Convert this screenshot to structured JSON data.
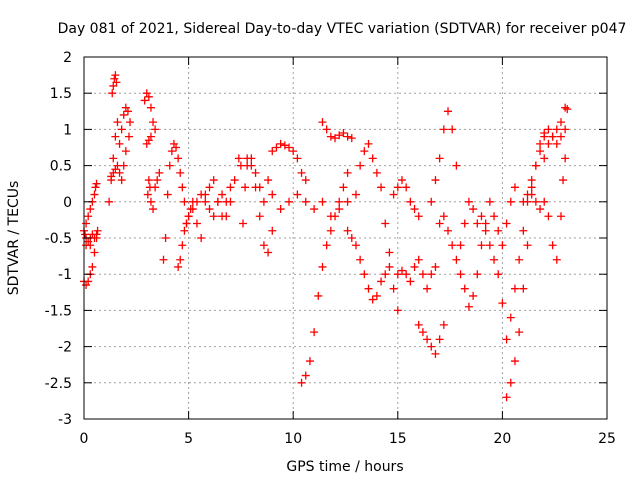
{
  "chart_data": {
    "type": "scatter",
    "title": "Day 081 of 2021, Sidereal Day-to-day VTEC variation (SDTVAR) for receiver p047",
    "xlabel": "GPS time / hours",
    "ylabel": "SDTVAR / TECUs",
    "xlim": [
      0,
      25
    ],
    "ylim": [
      -3,
      2
    ],
    "xticks": [
      0,
      5,
      10,
      15,
      20,
      25
    ],
    "xtick_labels": [
      "0",
      "5",
      "10",
      "15",
      "20",
      "25"
    ],
    "yticks": [
      -3,
      -2.5,
      -2,
      -1.5,
      -1,
      -0.5,
      0,
      0.5,
      1,
      1.5,
      2
    ],
    "ytick_labels": [
      "-3",
      "-2.5",
      "-2",
      "-1.5",
      "-1",
      "-0.5",
      "0",
      "0.5",
      "1",
      "1.5",
      "2"
    ],
    "grid": true,
    "marker": "+",
    "marker_color": "#ff0000",
    "series": [
      {
        "name": "SDTVAR",
        "x": [
          0.0,
          0.1,
          0.2,
          0.3,
          0.4,
          0.5,
          0.6,
          0.65,
          0.1,
          0.2,
          0.3,
          0.4,
          0.5,
          0.55,
          0.6,
          0.1,
          0.3,
          0.5,
          0.6,
          0.0,
          0.05,
          0.1,
          0.2,
          0.3,
          0.4
        ],
        "y": [
          -1.1,
          -1.15,
          -1.1,
          -1.0,
          -0.9,
          -0.7,
          -0.5,
          -0.4,
          -0.3,
          -0.2,
          -0.1,
          0.0,
          0.1,
          0.2,
          0.25,
          -0.5,
          -0.6,
          -0.5,
          -0.45,
          -0.4,
          -0.45,
          -0.6,
          -0.55,
          -0.5,
          -0.45
        ]
      },
      {
        "name": "SDTVAR",
        "x": [
          1.2,
          1.3,
          1.4,
          1.5,
          1.6,
          1.7,
          1.8,
          1.9,
          2.0,
          2.1,
          2.2,
          2.15,
          2.0,
          1.9,
          1.8,
          1.7,
          1.6,
          1.5,
          1.4,
          1.3,
          1.35,
          1.4,
          1.45,
          1.5,
          1.55
        ],
        "y": [
          0.0,
          0.3,
          0.6,
          0.9,
          1.1,
          0.8,
          1.0,
          1.2,
          1.3,
          1.25,
          1.1,
          0.9,
          0.7,
          0.5,
          0.3,
          0.4,
          0.5,
          0.45,
          0.4,
          0.35,
          1.5,
          1.6,
          1.7,
          1.75,
          1.65
        ]
      },
      {
        "name": "SDTVAR",
        "x": [
          2.9,
          3.0,
          3.1,
          3.2,
          3.3,
          3.4,
          3.2,
          3.1,
          3.0,
          3.05,
          3.1,
          3.15,
          3.2,
          3.3,
          3.4,
          3.5,
          3.6
        ],
        "y": [
          1.4,
          1.5,
          1.45,
          1.3,
          1.1,
          1.0,
          0.9,
          0.85,
          0.8,
          0.1,
          0.3,
          0.2,
          0.0,
          -0.1,
          0.2,
          0.3,
          0.4
        ]
      },
      {
        "name": "SDTVAR",
        "x": [
          3.8,
          3.9,
          4.0,
          4.1,
          4.2,
          4.3,
          4.4,
          4.5,
          4.6,
          4.7,
          4.8,
          4.9,
          5.0,
          5.1,
          5.2,
          5.4,
          5.6,
          5.8,
          6.0,
          6.2,
          6.4,
          6.6,
          6.8,
          7.0,
          7.2,
          7.4,
          7.5
        ],
        "y": [
          -0.8,
          -0.5,
          0.1,
          0.5,
          0.7,
          0.8,
          0.75,
          0.6,
          0.4,
          0.2,
          0.0,
          -0.3,
          -0.2,
          -0.1,
          0.0,
          -0.3,
          -0.5,
          0.1,
          0.2,
          0.3,
          0.0,
          -0.2,
          0.0,
          0.2,
          0.3,
          0.6,
          0.5
        ]
      },
      {
        "name": "SDTVAR",
        "x": [
          4.5,
          4.6,
          4.7,
          4.8,
          4.9,
          5.0,
          5.2,
          5.4,
          5.6,
          5.8,
          6.0,
          6.2,
          6.4,
          6.6,
          6.8,
          7.0
        ],
        "y": [
          -0.9,
          -0.8,
          -0.6,
          -0.4,
          -0.3,
          -0.2,
          -0.1,
          0.0,
          0.1,
          0.0,
          -0.1,
          -0.2,
          0.0,
          0.1,
          -0.2,
          0.0
        ]
      },
      {
        "name": "SDTVAR",
        "x": [
          7.8,
          8.0,
          8.2,
          8.4,
          8.6,
          8.8,
          9.0,
          8.6,
          8.4,
          8.2,
          8.0,
          7.8,
          7.7,
          7.6
        ],
        "y": [
          0.6,
          0.5,
          0.2,
          -0.2,
          -0.6,
          -0.7,
          -0.4,
          0.0,
          0.2,
          0.4,
          0.6,
          0.5,
          0.2,
          -0.3
        ]
      },
      {
        "name": "SDTVAR",
        "x": [
          9.0,
          9.2,
          9.4,
          9.6,
          9.8,
          10.0,
          10.2,
          10.4,
          10.6
        ],
        "y": [
          0.7,
          0.75,
          0.8,
          0.78,
          0.75,
          0.7,
          0.6,
          0.4,
          0.3
        ]
      },
      {
        "name": "SDTVAR",
        "x": [
          8.8,
          9.0,
          9.4,
          9.8,
          10.2,
          10.6,
          11.0,
          11.4,
          11.8,
          12.2,
          12.6,
          13.0
        ],
        "y": [
          0.3,
          0.1,
          -0.1,
          0.0,
          0.1,
          0.0,
          -0.1,
          0.0,
          -0.2,
          -0.1,
          0.0,
          0.1
        ]
      },
      {
        "name": "SDTVAR",
        "x": [
          10.4,
          10.6,
          10.8,
          11.0,
          11.2,
          11.4,
          11.6,
          11.8,
          12.0,
          12.2,
          12.4,
          12.6
        ],
        "y": [
          -2.5,
          -2.4,
          -2.2,
          -1.8,
          -1.3,
          -0.9,
          -0.6,
          -0.4,
          -0.2,
          0.0,
          0.2,
          0.4
        ]
      },
      {
        "name": "SDTVAR",
        "x": [
          11.4,
          11.6,
          11.8,
          12.0,
          12.2,
          12.4,
          12.6,
          12.8
        ],
        "y": [
          1.1,
          1.0,
          0.9,
          0.88,
          0.92,
          0.95,
          0.9,
          0.88
        ]
      },
      {
        "name": "SDTVAR",
        "x": [
          12.6,
          12.8,
          13.0,
          13.2,
          13.4,
          13.6,
          13.8,
          14.0,
          14.2,
          14.4,
          14.6
        ],
        "y": [
          -0.4,
          -0.5,
          -0.6,
          -0.8,
          -1.0,
          -1.2,
          -1.35,
          -1.3,
          -1.1,
          -1.0,
          -0.9
        ]
      },
      {
        "name": "SDTVAR",
        "x": [
          13.2,
          13.4,
          13.6,
          13.8,
          14.0,
          14.2,
          14.4,
          14.6,
          14.8,
          15.0
        ],
        "y": [
          0.5,
          0.7,
          0.8,
          0.6,
          0.4,
          0.2,
          -0.3,
          -0.7,
          -1.2,
          -1.5
        ]
      },
      {
        "name": "SDTVAR",
        "x": [
          14.8,
          15.0,
          15.2,
          15.4,
          15.6,
          15.8,
          16.0
        ],
        "y": [
          0.1,
          0.2,
          0.3,
          0.2,
          0.0,
          -0.1,
          -0.2
        ]
      },
      {
        "name": "SDTVAR",
        "x": [
          15.0,
          15.2,
          15.4,
          15.6,
          15.8,
          16.0,
          16.2,
          16.4,
          16.6,
          16.8
        ],
        "y": [
          -1.0,
          -0.95,
          -1.0,
          -1.1,
          -0.9,
          -0.8,
          -1.0,
          -1.2,
          -1.0,
          -0.9
        ]
      },
      {
        "name": "SDTVAR",
        "x": [
          16.0,
          16.2,
          16.4,
          16.6,
          16.8,
          17.0,
          17.2
        ],
        "y": [
          -1.7,
          -1.8,
          -1.9,
          -2.0,
          -2.1,
          -1.9,
          -1.7
        ]
      },
      {
        "name": "SDTVAR",
        "x": [
          16.6,
          16.8,
          17.0,
          17.2,
          17.4,
          17.6,
          17.8
        ],
        "y": [
          0.0,
          0.3,
          0.6,
          1.0,
          1.25,
          1.0,
          0.5
        ]
      },
      {
        "name": "SDTVAR",
        "x": [
          17.0,
          17.2,
          17.4,
          17.6,
          17.8,
          18.0,
          18.2,
          18.4,
          18.6,
          18.8,
          19.0,
          19.2,
          19.4,
          19.6,
          19.8,
          20.0,
          20.2,
          20.4,
          20.6
        ],
        "y": [
          -0.3,
          -0.2,
          -0.4,
          -0.6,
          -0.8,
          -1.0,
          -1.2,
          -1.45,
          -1.3,
          -1.0,
          -0.6,
          -0.3,
          0.0,
          -0.2,
          -0.4,
          -0.6,
          -0.3,
          0.0,
          0.2
        ]
      },
      {
        "name": "SDTVAR",
        "x": [
          18.0,
          18.2,
          18.4,
          18.6,
          18.8,
          19.0,
          19.2,
          19.4,
          19.6,
          19.8,
          20.0,
          20.2,
          20.4,
          20.6,
          20.8,
          21.0,
          21.2,
          21.4,
          21.6,
          21.8,
          22.0
        ],
        "y": [
          -0.6,
          -0.3,
          0.0,
          -0.1,
          -0.3,
          -0.2,
          -0.4,
          -0.6,
          -0.8,
          -1.0,
          -1.4,
          -1.9,
          -1.6,
          -1.2,
          -0.8,
          -0.4,
          0.0,
          0.3,
          0.5,
          0.7,
          0.9
        ]
      },
      {
        "name": "SDTVAR",
        "x": [
          20.2,
          20.4,
          20.6,
          20.8,
          21.0,
          21.2,
          21.4,
          21.6,
          21.8,
          22.0,
          22.2,
          22.4,
          22.6,
          22.8,
          23.0
        ],
        "y": [
          -2.7,
          -2.5,
          -2.2,
          -1.8,
          -1.2,
          -0.6,
          0.1,
          0.5,
          0.8,
          0.95,
          1.0,
          0.9,
          0.8,
          0.9,
          1.0
        ]
      },
      {
        "name": "SDTVAR",
        "x": [
          21.0,
          21.2,
          21.4,
          21.6,
          21.8,
          22.0,
          22.2,
          22.4,
          22.6,
          22.8,
          22.9,
          23.0
        ],
        "y": [
          0.0,
          0.1,
          0.2,
          0.0,
          -0.1,
          0.0,
          -0.2,
          -0.6,
          -0.8,
          -0.2,
          0.3,
          0.6
        ]
      },
      {
        "name": "SDTVAR",
        "x": [
          22.0,
          22.2,
          22.4,
          22.6,
          22.8,
          23.0,
          23.1
        ],
        "y": [
          0.6,
          0.8,
          0.9,
          1.0,
          1.1,
          1.3,
          1.28
        ]
      }
    ]
  }
}
